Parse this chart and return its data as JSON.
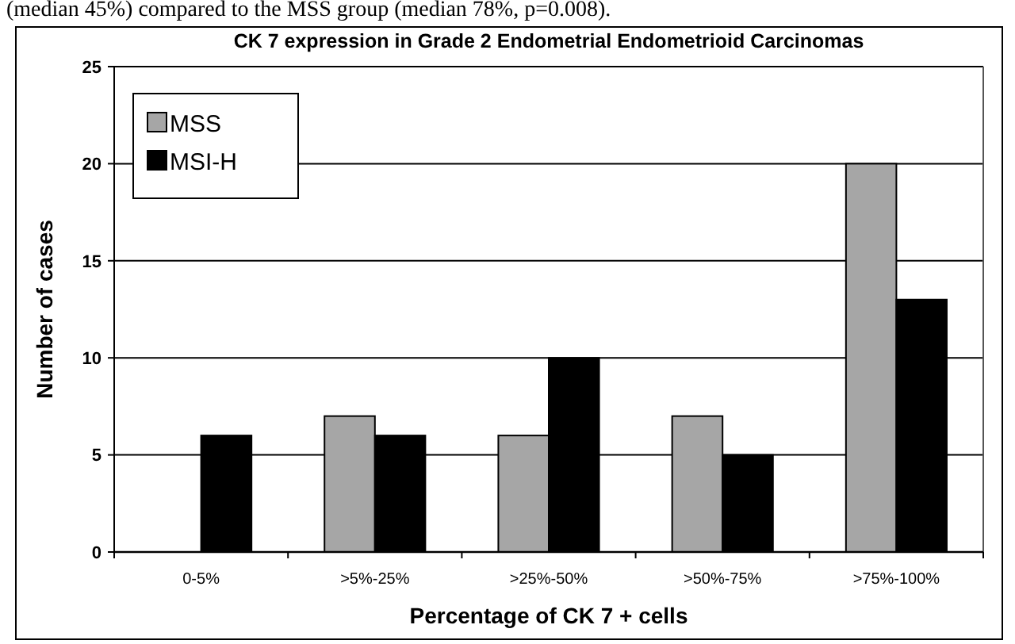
{
  "chart_data": {
    "type": "bar",
    "title": "CK 7 expression in Grade 2 Endometrial Endometrioid Carcinomas",
    "xlabel": "Percentage of CK 7 + cells",
    "ylabel": "Number of cases",
    "annotations": [
      "(median 45%) compared to the MSS group (median 78%, p=0.008)."
    ],
    "categories": [
      "0-5%",
      ">5%-25%",
      ">25%-50%",
      ">50%-75%",
      ">75%-100%"
    ],
    "series": [
      {
        "name": "MSS",
        "color": "#a6a6a6",
        "values": [
          0,
          7,
          6,
          7,
          20
        ]
      },
      {
        "name": "MSI-H",
        "color": "#000000",
        "values": [
          6,
          6,
          10,
          5,
          13
        ]
      }
    ],
    "ylim": [
      0,
      25
    ],
    "yticks": [
      0,
      5,
      10,
      15,
      20,
      25
    ],
    "grid": "y",
    "legend": "top left"
  }
}
